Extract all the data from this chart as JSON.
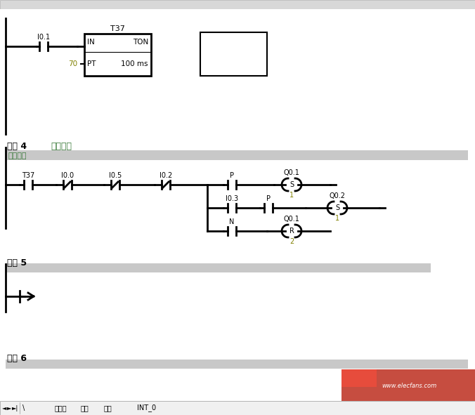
{
  "white": "#ffffff",
  "black": "#000000",
  "green": "#3a7a3a",
  "olive": "#808000",
  "gray_bar": "#c8c8c8",
  "light_gray": "#d8d8d8",
  "figsize": [
    6.76,
    5.91
  ],
  "dpi": 100,
  "network4_label": "网络 4",
  "network4_title": "网络标题",
  "network4_comment": "网络注释",
  "network5_label": "网络 5",
  "network6_label": "网络 6",
  "tab_labels": [
    "主程序",
    "手动",
    "自动",
    "INT_0"
  ]
}
